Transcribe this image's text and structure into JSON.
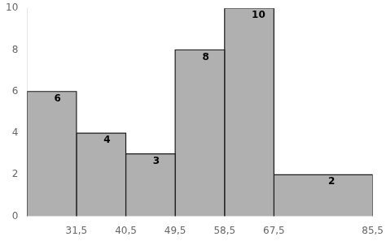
{
  "chart_data": {
    "type": "histogram",
    "bins": [
      22.5,
      31.5,
      40.5,
      49.5,
      58.5,
      67.5,
      85.5
    ],
    "values": [
      6,
      4,
      3,
      8,
      10,
      2
    ],
    "color": "#b0b0b0",
    "xlim": [
      22.5,
      85.5
    ],
    "xticks": [
      {
        "value": 31.5,
        "label": "31,5"
      },
      {
        "value": 40.5,
        "label": "40,5"
      },
      {
        "value": 49.5,
        "label": "49,5"
      },
      {
        "value": 58.5,
        "label": "58,5"
      },
      {
        "value": 67.5,
        "label": "67,5"
      },
      {
        "value": 85.5,
        "label": "85,5"
      }
    ],
    "ylim": [
      0,
      10
    ],
    "yticks": [
      0,
      2,
      4,
      6,
      8,
      10
    ],
    "grid": false,
    "data_labels": true
  }
}
